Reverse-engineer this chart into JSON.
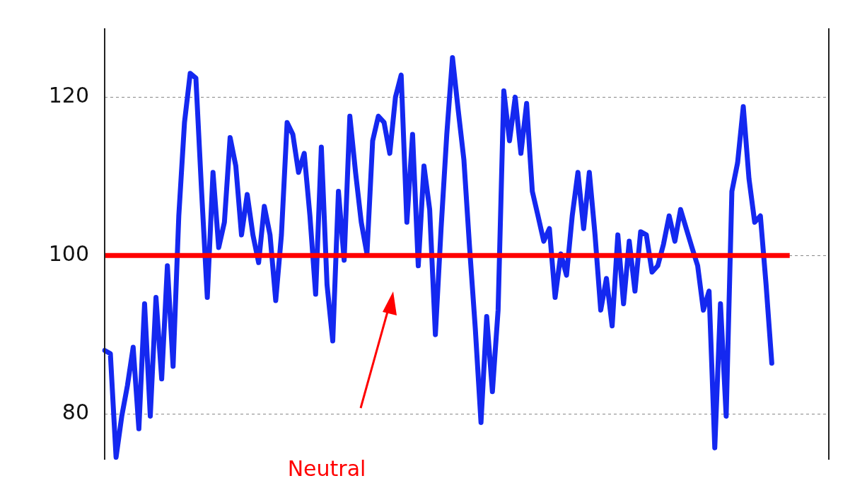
{
  "chart_data": {
    "type": "line",
    "categories": [
      null,
      null,
      null,
      null,
      null,
      null,
      null,
      null,
      null,
      null,
      null,
      null,
      null,
      null,
      null,
      null,
      null,
      null,
      null,
      null,
      null,
      null,
      null,
      null,
      null,
      null,
      null,
      null,
      null,
      null,
      null,
      null,
      null,
      null,
      null,
      null,
      null,
      null,
      null,
      null,
      null,
      null,
      null,
      null,
      null,
      null,
      null,
      null,
      null,
      null,
      null,
      null,
      null,
      null,
      null,
      null,
      null,
      null,
      null,
      null,
      null,
      null,
      null,
      null,
      null,
      null,
      null,
      null,
      null,
      null,
      null,
      null,
      null,
      null,
      null,
      null,
      null,
      null,
      null,
      null,
      null,
      null,
      null,
      null,
      null,
      null,
      null,
      null,
      null,
      null,
      null,
      null,
      null,
      null,
      null,
      null,
      null,
      null,
      null,
      null,
      null,
      null,
      null,
      null,
      null,
      null,
      null,
      null,
      null,
      null,
      null,
      null,
      null,
      null,
      null,
      null,
      null,
      null,
      null,
      null,
      null,
      null,
      null,
      null,
      null,
      null,
      null,
      null
    ],
    "series": [
      {
        "color": "#1428f0",
        "values": [
          88,
          87.6,
          74.5,
          79.7,
          83.6,
          88.4,
          78.1,
          93.9,
          79.7,
          94.7,
          84.4,
          98.7,
          86,
          105,
          116.8,
          123,
          122.4,
          108.1,
          94.7,
          110.5,
          101,
          104.2,
          114.9,
          111.3,
          102.6,
          107.7,
          102.6,
          99.1,
          106.2,
          102.6,
          94.3,
          102.6,
          116.8,
          115.3,
          110.5,
          112.9,
          105,
          95.1,
          113.7,
          96.3,
          89.2,
          108.1,
          99.4,
          117.6,
          110.5,
          104.2,
          100.2,
          114.5,
          117.6,
          116.8,
          112.9,
          120,
          122.8,
          104.2,
          115.3,
          98.7,
          111.3,
          105.8,
          90,
          103.4,
          115.3,
          125,
          118.4,
          112.1,
          101,
          90.8,
          78.9,
          92.3,
          82.8,
          93.1,
          120.8,
          114.5,
          120,
          112.9,
          119.2,
          108.1,
          105,
          101.8,
          103.4,
          94.7,
          100.2,
          97.5,
          105,
          110.5,
          103.4,
          110.5,
          102.6,
          93.1,
          97.1,
          91.1,
          102.6,
          93.9,
          101.8,
          95.5,
          103,
          102.6,
          97.9,
          98.7,
          101.4,
          105,
          101.8,
          105.8,
          103.4,
          101,
          98.7,
          93.1,
          95.5,
          75.7,
          93.9,
          79.7,
          108.1,
          111.7,
          118.8,
          109.7,
          104.2,
          105,
          96.3,
          86.4,
          null,
          null,
          null,
          null,
          null,
          null,
          null,
          null,
          null,
          null
        ]
      }
    ],
    "ylim": [
      74.2,
      128.7
    ],
    "yticks": [
      80,
      100,
      120
    ],
    "grid": "y",
    "tick_labels": "y",
    "marker": "none",
    "line_style": "solid",
    "ref_lines": [
      {
        "axis": "y",
        "value": 100,
        "label": "Neutral",
        "color": "#ff0000"
      }
    ]
  }
}
